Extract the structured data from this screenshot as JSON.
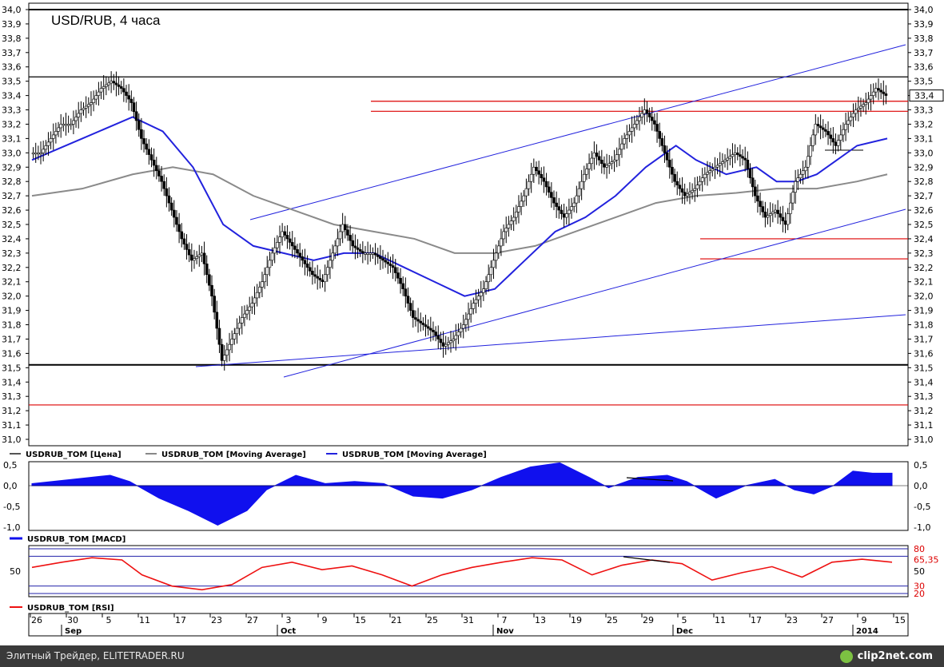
{
  "chart_data": [
    {
      "type": "candlestick",
      "title": "USD/RUB, 4 часа",
      "ylim": [
        31.0,
        34.0
      ],
      "y_ticks": [
        "31,0",
        "31,1",
        "31,2",
        "31,3",
        "31,4",
        "31,5",
        "31,6",
        "31,7",
        "31,8",
        "31,9",
        "32,0",
        "32,1",
        "32,2",
        "32,3",
        "32,4",
        "32,5",
        "32,6",
        "32,7",
        "32,8",
        "32,9",
        "33,0",
        "33,1",
        "33,2",
        "33,3",
        "33,4",
        "33,5",
        "33,6",
        "33,7",
        "33,8",
        "33,9",
        "34,0"
      ],
      "last_price_label": "33,4",
      "x_tick_labels": [
        "26",
        "30",
        "5",
        "11",
        "17",
        "23",
        "27",
        "3",
        "9",
        "15",
        "21",
        "25",
        "31",
        "7",
        "13",
        "19",
        "25",
        "29",
        "5",
        "11",
        "17",
        "23",
        "27",
        "9",
        "15"
      ],
      "month_labels": [
        "Sep",
        "Oct",
        "Nov",
        "Dec",
        "2014"
      ],
      "price_path": [
        [
          0,
          33.0
        ],
        [
          1,
          33.0
        ],
        [
          2,
          33.1
        ],
        [
          3,
          33.2
        ],
        [
          4,
          33.2
        ],
        [
          5,
          33.3
        ],
        [
          6,
          33.35
        ],
        [
          7,
          33.45
        ],
        [
          8,
          33.5
        ],
        [
          9,
          33.45
        ],
        [
          10,
          33.35
        ],
        [
          11,
          33.1
        ],
        [
          12,
          32.95
        ],
        [
          13,
          32.8
        ],
        [
          14,
          32.6
        ],
        [
          15,
          32.4
        ],
        [
          16,
          32.25
        ],
        [
          17,
          32.3
        ],
        [
          18,
          32.0
        ],
        [
          19,
          31.55
        ],
        [
          20,
          31.7
        ],
        [
          21,
          31.85
        ],
        [
          22,
          31.95
        ],
        [
          23,
          32.1
        ],
        [
          24,
          32.3
        ],
        [
          25,
          32.45
        ],
        [
          26,
          32.35
        ],
        [
          27,
          32.25
        ],
        [
          28,
          32.15
        ],
        [
          29,
          32.1
        ],
        [
          30,
          32.3
        ],
        [
          31,
          32.5
        ],
        [
          32,
          32.35
        ],
        [
          33,
          32.3
        ],
        [
          34,
          32.3
        ],
        [
          35,
          32.25
        ],
        [
          36,
          32.2
        ],
        [
          37,
          32.05
        ],
        [
          38,
          31.85
        ],
        [
          39,
          31.8
        ],
        [
          40,
          31.75
        ],
        [
          41,
          31.65
        ],
        [
          42,
          31.7
        ],
        [
          43,
          31.8
        ],
        [
          44,
          31.95
        ],
        [
          45,
          32.05
        ],
        [
          46,
          32.25
        ],
        [
          47,
          32.45
        ],
        [
          48,
          32.55
        ],
        [
          49,
          32.7
        ],
        [
          50,
          32.9
        ],
        [
          51,
          32.8
        ],
        [
          52,
          32.65
        ],
        [
          53,
          32.55
        ],
        [
          54,
          32.65
        ],
        [
          55,
          32.85
        ],
        [
          56,
          33.0
        ],
        [
          57,
          32.9
        ],
        [
          58,
          32.95
        ],
        [
          59,
          33.1
        ],
        [
          60,
          33.2
        ],
        [
          61,
          33.3
        ],
        [
          62,
          33.2
        ],
        [
          63,
          33.0
        ],
        [
          64,
          32.8
        ],
        [
          65,
          32.7
        ],
        [
          66,
          32.75
        ],
        [
          67,
          32.85
        ],
        [
          68,
          32.9
        ],
        [
          69,
          32.95
        ],
        [
          70,
          33.0
        ],
        [
          71,
          32.95
        ],
        [
          72,
          32.7
        ],
        [
          73,
          32.55
        ],
        [
          74,
          32.6
        ],
        [
          75,
          32.5
        ],
        [
          76,
          32.8
        ],
        [
          77,
          32.9
        ],
        [
          78,
          33.2
        ],
        [
          79,
          33.15
        ],
        [
          80,
          33.05
        ],
        [
          81,
          33.2
        ],
        [
          82,
          33.3
        ],
        [
          83,
          33.35
        ],
        [
          84,
          33.45
        ],
        [
          85,
          33.4
        ]
      ],
      "fast_ma_path": [
        [
          0,
          32.95
        ],
        [
          5,
          33.1
        ],
        [
          10,
          33.25
        ],
        [
          13,
          33.15
        ],
        [
          16,
          32.9
        ],
        [
          19,
          32.5
        ],
        [
          22,
          32.35
        ],
        [
          25,
          32.3
        ],
        [
          28,
          32.25
        ],
        [
          31,
          32.3
        ],
        [
          34,
          32.3
        ],
        [
          37,
          32.2
        ],
        [
          40,
          32.1
        ],
        [
          43,
          32.0
        ],
        [
          46,
          32.05
        ],
        [
          49,
          32.25
        ],
        [
          52,
          32.45
        ],
        [
          55,
          32.55
        ],
        [
          58,
          32.7
        ],
        [
          61,
          32.9
        ],
        [
          64,
          33.05
        ],
        [
          66,
          32.95
        ],
        [
          69,
          32.85
        ],
        [
          72,
          32.9
        ],
        [
          74,
          32.8
        ],
        [
          76,
          32.8
        ],
        [
          78,
          32.85
        ],
        [
          80,
          32.95
        ],
        [
          82,
          33.05
        ],
        [
          85,
          33.1
        ]
      ],
      "slow_ma_path": [
        [
          0,
          32.7
        ],
        [
          5,
          32.75
        ],
        [
          10,
          32.85
        ],
        [
          14,
          32.9
        ],
        [
          18,
          32.85
        ],
        [
          22,
          32.7
        ],
        [
          26,
          32.6
        ],
        [
          30,
          32.5
        ],
        [
          34,
          32.45
        ],
        [
          38,
          32.4
        ],
        [
          42,
          32.3
        ],
        [
          46,
          32.3
        ],
        [
          50,
          32.35
        ],
        [
          54,
          32.45
        ],
        [
          58,
          32.55
        ],
        [
          62,
          32.65
        ],
        [
          66,
          32.7
        ],
        [
          70,
          32.72
        ],
        [
          74,
          32.75
        ],
        [
          78,
          32.75
        ],
        [
          82,
          32.8
        ],
        [
          85,
          32.85
        ]
      ],
      "horizontal_levels": [
        {
          "value": 34.0,
          "color": "#000000"
        },
        {
          "value": 33.53,
          "color": "#000000"
        },
        {
          "value": 33.36,
          "color": "#dd0000"
        },
        {
          "value": 33.29,
          "color": "#dd0000"
        },
        {
          "value": 32.4,
          "color": "#dd0000"
        },
        {
          "value": 32.26,
          "color": "#dd0000"
        },
        {
          "value": 31.52,
          "color": "#000000"
        },
        {
          "value": 31.24,
          "color": "#dd0000"
        }
      ],
      "legend": [
        {
          "label": "USDRUB_TOM [Цена]",
          "color": "#555555"
        },
        {
          "label": "USDRUB_TOM [Moving Average]",
          "color": "#888888"
        },
        {
          "label": "USDRUB_TOM [Moving Average]",
          "color": "#2222dd"
        }
      ],
      "legend_position": "bottom"
    },
    {
      "type": "area",
      "name": "MACD",
      "ylim": [
        -1.0,
        0.5
      ],
      "y_ticks": [
        "0,5",
        "0,0",
        "-0,5",
        "-1,0"
      ],
      "values_path": [
        [
          0,
          0.05
        ],
        [
          4,
          0.15
        ],
        [
          8,
          0.25
        ],
        [
          10,
          0.1
        ],
        [
          13,
          -0.3
        ],
        [
          16,
          -0.6
        ],
        [
          19,
          -0.95
        ],
        [
          22,
          -0.6
        ],
        [
          24,
          -0.1
        ],
        [
          27,
          0.25
        ],
        [
          30,
          0.05
        ],
        [
          33,
          0.1
        ],
        [
          36,
          0.05
        ],
        [
          39,
          -0.25
        ],
        [
          42,
          -0.3
        ],
        [
          45,
          -0.1
        ],
        [
          48,
          0.2
        ],
        [
          51,
          0.45
        ],
        [
          54,
          0.55
        ],
        [
          57,
          0.2
        ],
        [
          59,
          -0.05
        ],
        [
          62,
          0.2
        ],
        [
          65,
          0.25
        ],
        [
          67,
          0.1
        ],
        [
          70,
          -0.3
        ],
        [
          73,
          0.0
        ],
        [
          76,
          0.15
        ],
        [
          78,
          -0.1
        ],
        [
          80,
          -0.2
        ],
        [
          82,
          0.0
        ],
        [
          84,
          0.35
        ],
        [
          86,
          0.3
        ],
        [
          88,
          0.3
        ]
      ],
      "legend": "USDRUB_TOM [MACD]"
    },
    {
      "type": "line",
      "name": "RSI",
      "ylim": [
        20,
        80
      ],
      "left_label": "50",
      "right_labels": [
        "80",
        "65,35",
        "50",
        "30",
        "20"
      ],
      "values_path": [
        [
          0,
          55
        ],
        [
          3,
          62
        ],
        [
          6,
          68
        ],
        [
          9,
          65
        ],
        [
          11,
          45
        ],
        [
          14,
          30
        ],
        [
          17,
          25
        ],
        [
          20,
          32
        ],
        [
          23,
          55
        ],
        [
          26,
          62
        ],
        [
          29,
          52
        ],
        [
          32,
          57
        ],
        [
          35,
          45
        ],
        [
          38,
          30
        ],
        [
          41,
          45
        ],
        [
          44,
          55
        ],
        [
          47,
          62
        ],
        [
          50,
          68
        ],
        [
          53,
          65
        ],
        [
          56,
          45
        ],
        [
          59,
          58
        ],
        [
          62,
          65
        ],
        [
          65,
          60
        ],
        [
          68,
          38
        ],
        [
          71,
          48
        ],
        [
          74,
          56
        ],
        [
          77,
          42
        ],
        [
          80,
          62
        ],
        [
          83,
          66
        ],
        [
          86,
          62
        ]
      ],
      "legend": "USDRUB_TOM [RSI]"
    }
  ],
  "footer": {
    "left_text": "Элитный Трейдер, ELITETRADER.RU",
    "right_text": "clip2net.com"
  }
}
